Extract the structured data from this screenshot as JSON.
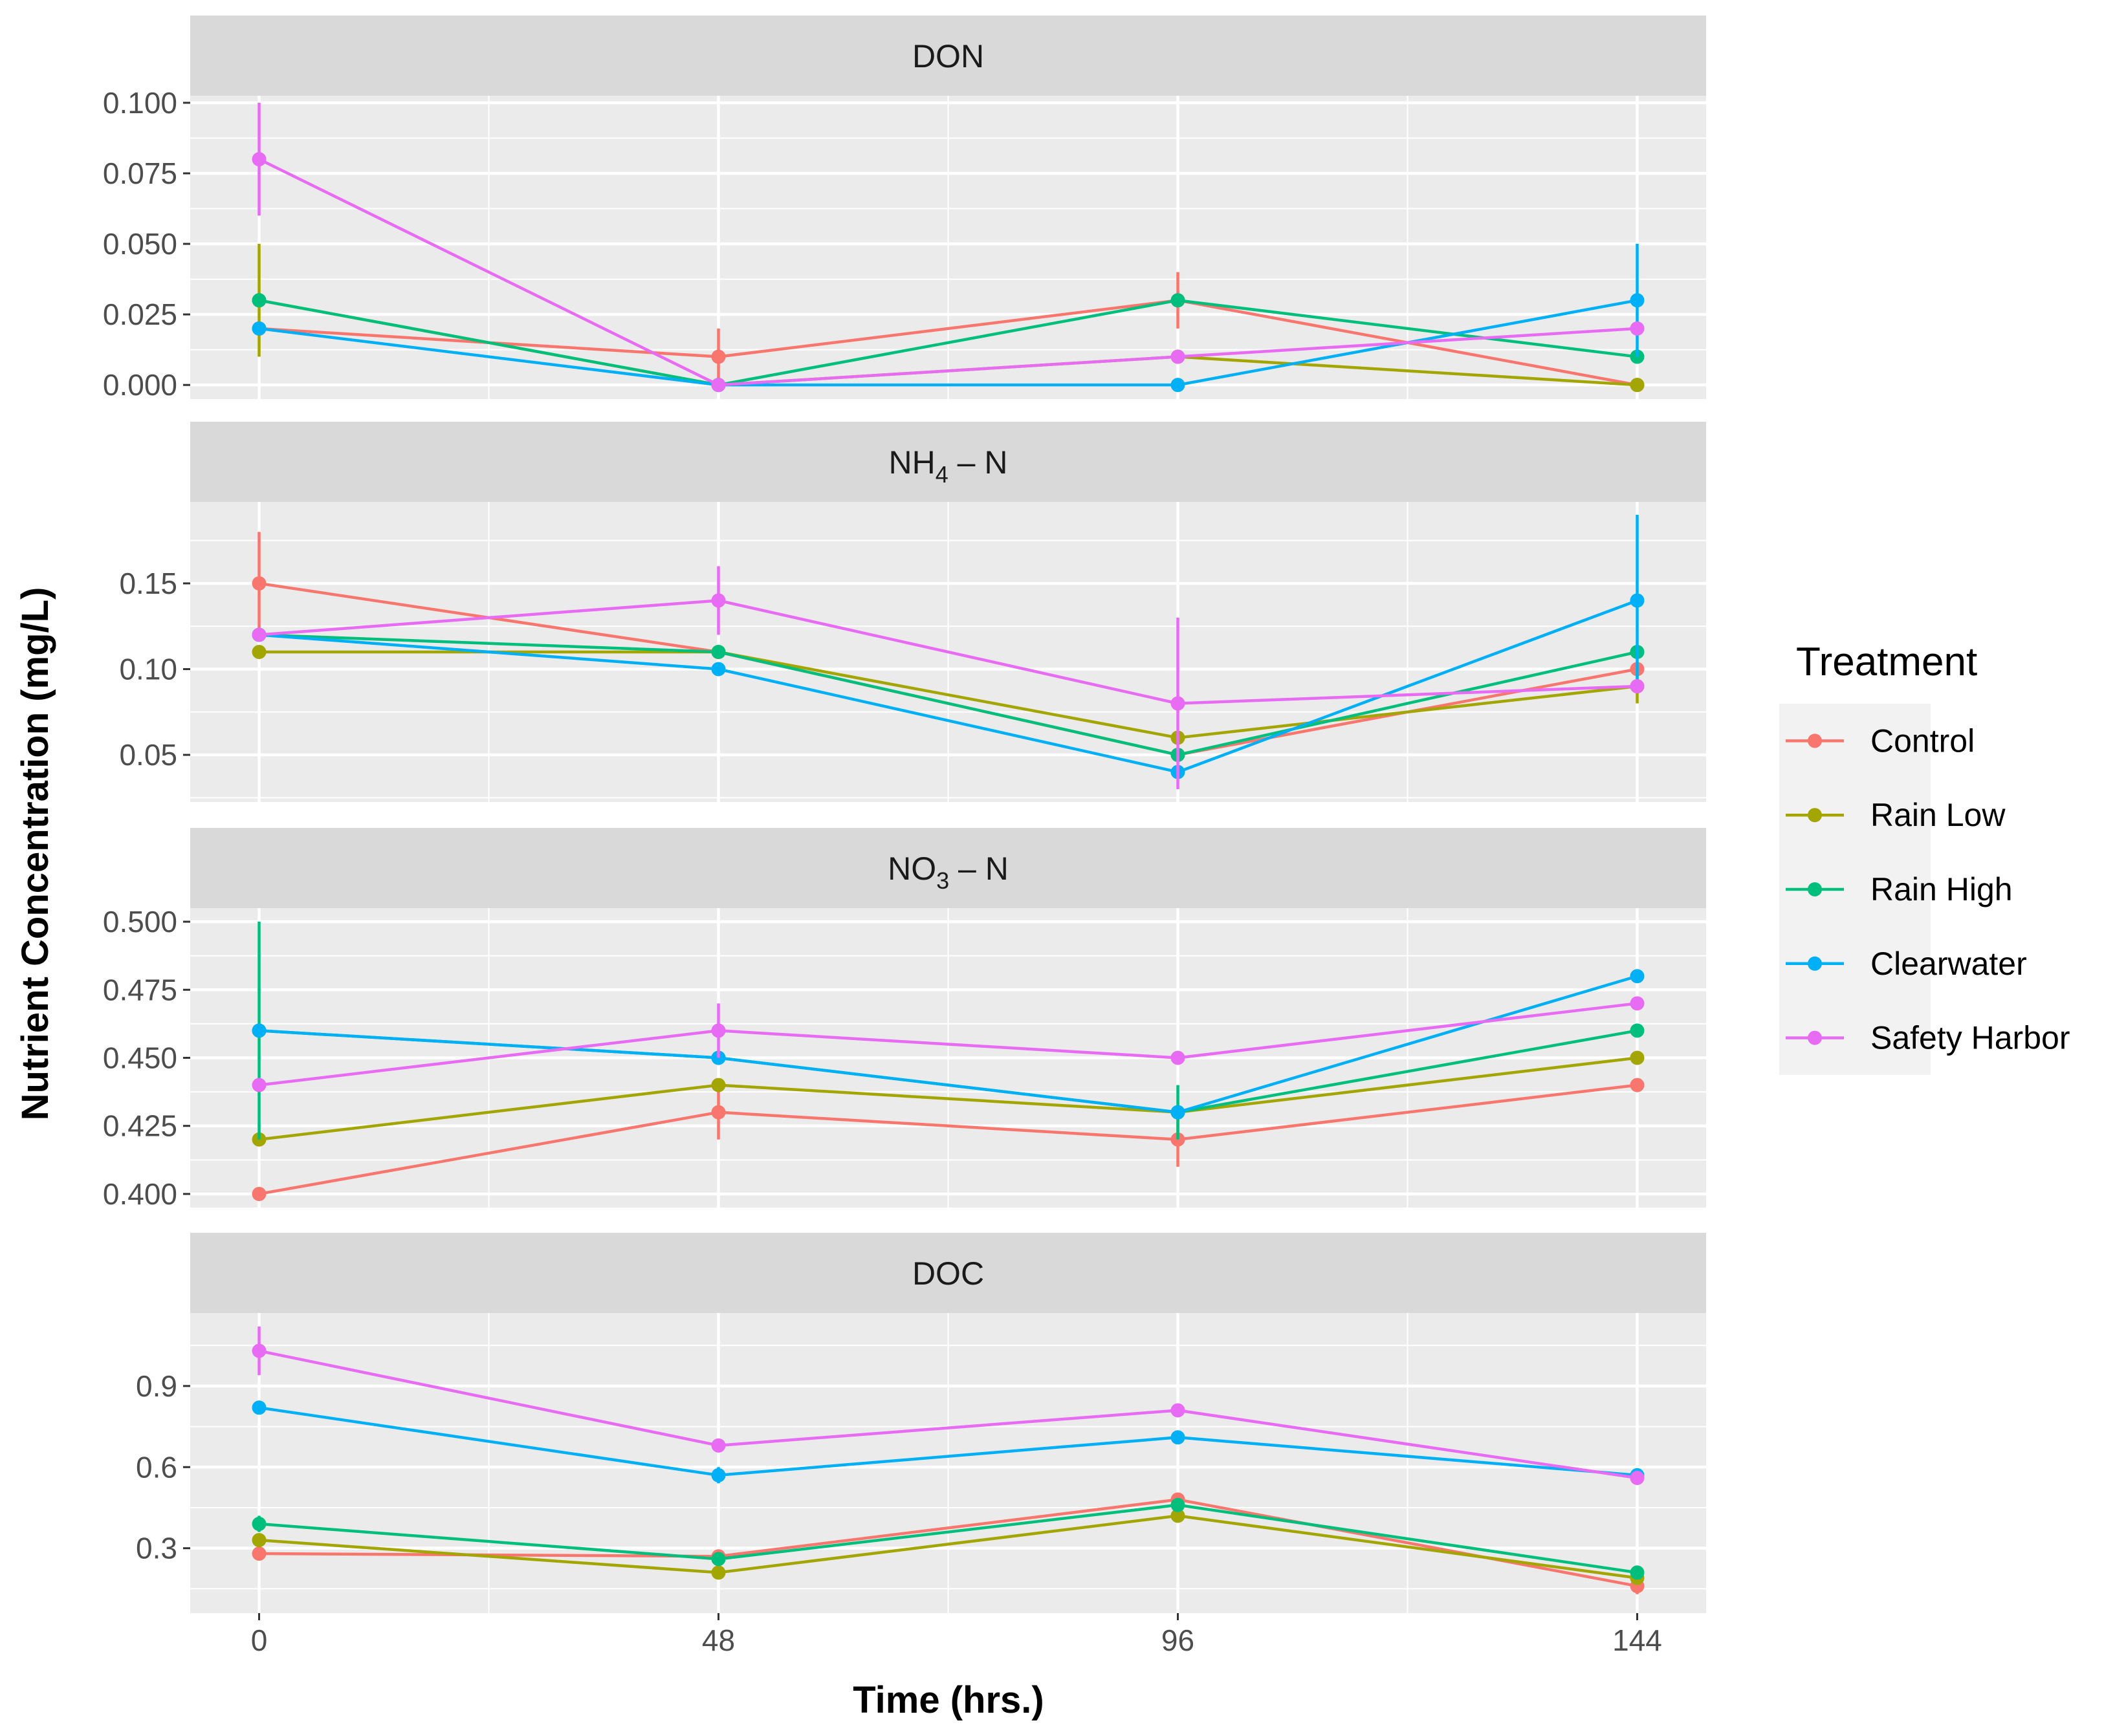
{
  "chart_data": {
    "type": "line",
    "subtype": "faceted line chart with points and error bars",
    "x": [
      0,
      48,
      96,
      144
    ],
    "x_tick_labels": [
      "0",
      "48",
      "96",
      "144"
    ],
    "xlabel": "Time (hrs.)",
    "ylabel": "Nutrient Concentration (mg/L)",
    "xlim": [
      -7.2,
      151.2
    ],
    "legend": {
      "title": "Treatment",
      "position": "right",
      "entries": [
        "Control",
        "Rain Low",
        "Rain High",
        "Clearwater",
        "Safety Harbor"
      ]
    },
    "series_colors": {
      "Control": "#F8766D",
      "Rain Low": "#A3A500",
      "Rain High": "#00BF7D",
      "Clearwater": "#00B0F6",
      "Safety Harbor": "#E76BF3"
    },
    "panels": [
      {
        "strip": {
          "main": "DON",
          "sub": ""
        },
        "ylim": [
          -0.005,
          0.1025
        ],
        "y_ticks": [
          0.0,
          0.025,
          0.05,
          0.075,
          0.1
        ],
        "y_tick_labels": [
          "0.000",
          "0.025",
          "0.050",
          "0.075",
          "0.100"
        ],
        "series": [
          {
            "name": "Control",
            "values": [
              0.02,
              0.01,
              0.03,
              0.0
            ],
            "err": [
              0.0,
              0.01,
              0.01,
              0.0
            ]
          },
          {
            "name": "Rain Low",
            "values": [
              0.03,
              0.0,
              0.01,
              0.0
            ],
            "err": [
              0.02,
              0.0,
              0.0,
              0.0
            ]
          },
          {
            "name": "Rain High",
            "values": [
              0.03,
              0.0,
              0.03,
              0.01
            ],
            "err": [
              0.0,
              0.0,
              0.0,
              0.0
            ]
          },
          {
            "name": "Clearwater",
            "values": [
              0.02,
              0.0,
              0.0,
              0.03
            ],
            "err": [
              0.0,
              0.0,
              0.0,
              0.02
            ]
          },
          {
            "name": "Safety Harbor",
            "values": [
              0.08,
              0.0,
              0.01,
              0.02
            ],
            "err": [
              0.02,
              0.0,
              0.0,
              0.0
            ]
          }
        ]
      },
      {
        "strip": {
          "main": "NH",
          "sub": "4",
          "tail": " – N"
        },
        "ylim": [
          0.0225,
          0.1975
        ],
        "y_ticks": [
          0.05,
          0.1,
          0.15
        ],
        "y_tick_labels": [
          "0.05",
          "0.10",
          "0.15"
        ],
        "series": [
          {
            "name": "Control",
            "values": [
              0.15,
              0.11,
              0.05,
              0.1
            ],
            "err": [
              0.03,
              0.0,
              0.0,
              0.0
            ]
          },
          {
            "name": "Rain Low",
            "values": [
              0.11,
              0.11,
              0.06,
              0.09
            ],
            "err": [
              0.0,
              0.0,
              0.0,
              0.01
            ]
          },
          {
            "name": "Rain High",
            "values": [
              0.12,
              0.11,
              0.05,
              0.11
            ],
            "err": [
              0.0,
              0.0,
              0.0,
              0.0
            ]
          },
          {
            "name": "Clearwater",
            "values": [
              0.12,
              0.1,
              0.04,
              0.14
            ],
            "err": [
              0.0,
              0.0,
              0.0,
              0.05
            ]
          },
          {
            "name": "Safety Harbor",
            "values": [
              0.12,
              0.14,
              0.08,
              0.09
            ],
            "err": [
              0.0,
              0.02,
              0.05,
              0.0
            ]
          }
        ]
      },
      {
        "strip": {
          "main": "NO",
          "sub": "3",
          "tail": " – N"
        },
        "ylim": [
          0.395,
          0.505
        ],
        "y_ticks": [
          0.4,
          0.425,
          0.45,
          0.475,
          0.5
        ],
        "y_tick_labels": [
          "0.400",
          "0.425",
          "0.450",
          "0.475",
          "0.500"
        ],
        "series": [
          {
            "name": "Control",
            "values": [
              0.4,
              0.43,
              0.42,
              0.44
            ],
            "err": [
              0.0,
              0.01,
              0.01,
              0.0
            ]
          },
          {
            "name": "Rain Low",
            "values": [
              0.42,
              0.44,
              0.43,
              0.45
            ],
            "err": [
              0.0,
              0.0,
              0.0,
              0.0
            ]
          },
          {
            "name": "Rain High",
            "values": [
              0.46,
              0.45,
              0.43,
              0.46
            ],
            "err": [
              0.04,
              0.0,
              0.01,
              0.0
            ]
          },
          {
            "name": "Clearwater",
            "values": [
              0.46,
              0.45,
              0.43,
              0.48
            ],
            "err": [
              0.0,
              0.0,
              0.0,
              0.0
            ]
          },
          {
            "name": "Safety Harbor",
            "values": [
              0.44,
              0.46,
              0.45,
              0.47
            ],
            "err": [
              0.0,
              0.01,
              0.0,
              0.0
            ]
          }
        ]
      },
      {
        "strip": {
          "main": "DOC",
          "sub": ""
        },
        "ylim": [
          0.06,
          1.17
        ],
        "y_ticks": [
          0.3,
          0.6,
          0.9
        ],
        "y_tick_labels": [
          "0.3",
          "0.6",
          "0.9"
        ],
        "series": [
          {
            "name": "Control",
            "values": [
              0.28,
              0.27,
              0.48,
              0.16
            ],
            "err": [
              0.0,
              0.0,
              0.0,
              0.03
            ]
          },
          {
            "name": "Rain Low",
            "values": [
              0.33,
              0.21,
              0.42,
              0.19
            ],
            "err": [
              0.0,
              0.0,
              0.0,
              0.0
            ]
          },
          {
            "name": "Rain High",
            "values": [
              0.39,
              0.26,
              0.46,
              0.21
            ],
            "err": [
              0.03,
              0.0,
              0.0,
              0.0
            ]
          },
          {
            "name": "Clearwater",
            "values": [
              0.82,
              0.57,
              0.71,
              0.57
            ],
            "err": [
              0.0,
              0.03,
              0.0,
              0.0
            ]
          },
          {
            "name": "Safety Harbor",
            "values": [
              1.03,
              0.68,
              0.81,
              0.56
            ],
            "err": [
              0.09,
              0.0,
              0.0,
              0.0
            ]
          }
        ]
      }
    ]
  }
}
